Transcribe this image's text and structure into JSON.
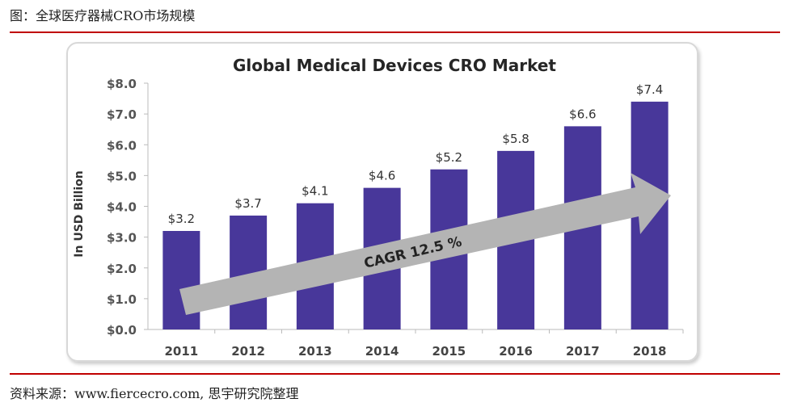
{
  "caption": "图：全球医疗器械CRO市场规模",
  "source": "资料来源：www.fiercecro.com, 思宇研究院整理",
  "colors": {
    "bar": "#48379a",
    "arrow": "#b4b4b4",
    "rule": "#c00000"
  },
  "chart_data": {
    "type": "bar",
    "title": "Global Medical Devices CRO Market",
    "ylabel": "In USD Billion",
    "xlabel": "",
    "categories": [
      "2011",
      "2012",
      "2013",
      "2014",
      "2015",
      "2016",
      "2017",
      "2018"
    ],
    "values": [
      3.2,
      3.7,
      4.1,
      4.6,
      5.2,
      5.8,
      6.6,
      7.4
    ],
    "data_labels": [
      "$3.2",
      "$3.7",
      "$4.1",
      "$4.6",
      "$5.2",
      "$5.8",
      "$6.6",
      "$7.4"
    ],
    "yticks": [
      "$0.0",
      "$1.0",
      "$2.0",
      "$3.0",
      "$4.0",
      "$5.0",
      "$6.0",
      "$7.0",
      "$8.0"
    ],
    "ylim": [
      0,
      8
    ],
    "grid": false,
    "annotation": "CAGR 12.5 %"
  }
}
